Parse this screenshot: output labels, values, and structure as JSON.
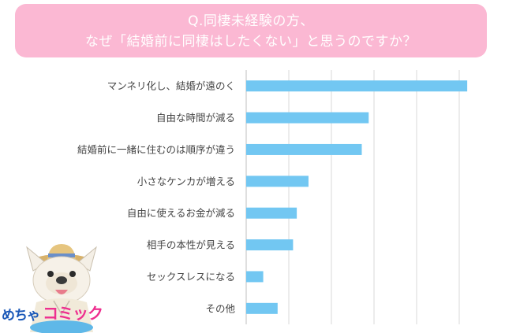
{
  "question": {
    "line1": "Q.同棲未経験の方、",
    "line2": "なぜ「結婚前に同棲はしたくない」と思うのですか？"
  },
  "colors": {
    "banner": "#fbb8d3",
    "bar": "#72c7f2",
    "grid": "#d9d9d9",
    "axis": "#bfbfbf"
  },
  "logo": {
    "part1": "めちゃ",
    "part2": "コミック"
  },
  "mascot": {
    "icon": "bulldog-mascot-with-straw-hat"
  },
  "chart_data": {
    "type": "bar",
    "orientation": "horizontal",
    "categories": [
      "マンネリ化し、結婚が遠のく",
      "自由な時間が減る",
      "結婚前に一緒に住むのは順序が違う",
      "小さなケンカが増える",
      "自由に使えるお金が減る",
      "相手の本性が見える",
      "セックスレスになる",
      "その他"
    ],
    "values": [
      41.5,
      23.0,
      21.7,
      11.7,
      9.5,
      8.8,
      3.2,
      5.9
    ],
    "xlim": [
      0,
      40
    ],
    "grid": true,
    "axis_tick_labels_shown": false
  }
}
